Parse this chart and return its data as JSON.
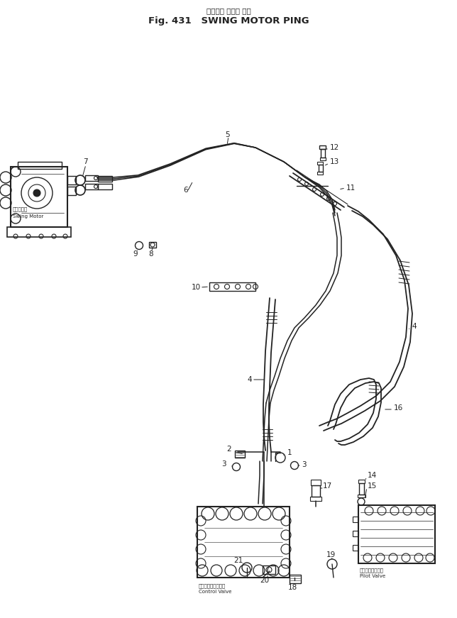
{
  "title1": "スイング モータ ピン",
  "title2": "Fig. 431   SWING MOTOR PING",
  "bg": "#ffffff",
  "lc": "#222222",
  "figw": 6.44,
  "figh": 8.71,
  "dpi": 100,
  "swing_motor_jp": "旋回モータ",
  "swing_motor_en": "Swing Motor",
  "control_valve_jp": "コントロールバルブ",
  "control_valve_en": "Control Valve",
  "pilot_valve_jp": "パイロットバルブ",
  "pilot_valve_en": "Pilot Valve"
}
